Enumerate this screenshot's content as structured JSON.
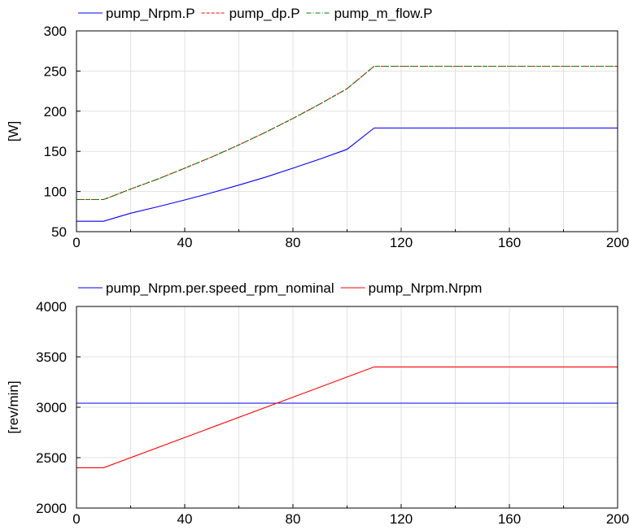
{
  "chart_data": [
    {
      "type": "line",
      "xlim": [
        0,
        200
      ],
      "ylim": [
        50,
        300
      ],
      "xticks": [
        0,
        40,
        80,
        120,
        160,
        200
      ],
      "yticks": [
        50,
        100,
        150,
        200,
        250,
        300
      ],
      "ylabel": "[W]",
      "grid": true,
      "legend_position": "top",
      "series": [
        {
          "name": "pump_Nrpm.P",
          "color": "#0000ff",
          "dash": "solid",
          "x": [
            0,
            10,
            20,
            30,
            40,
            50,
            60,
            70,
            80,
            90,
            100,
            110,
            200
          ],
          "y": [
            63,
            63,
            73,
            81,
            89.5,
            98.5,
            108,
            118,
            129,
            140.5,
            152.5,
            179,
            179
          ]
        },
        {
          "name": "pump_dp.P",
          "color": "#ff0000",
          "dash": "dashed",
          "x": [
            0,
            10,
            20,
            30,
            40,
            50,
            60,
            70,
            80,
            90,
            100,
            110,
            200
          ],
          "y": [
            90,
            90,
            103,
            115.5,
            129,
            143,
            158,
            174,
            191,
            209,
            228,
            256,
            256
          ]
        },
        {
          "name": "pump_m_flow.P",
          "color": "#008000",
          "dash": "dashdot",
          "x": [
            0,
            10,
            20,
            30,
            40,
            50,
            60,
            70,
            80,
            90,
            100,
            110,
            200
          ],
          "y": [
            90,
            90,
            103,
            115.5,
            129,
            143,
            158,
            174,
            191,
            209,
            228,
            256,
            256
          ]
        }
      ]
    },
    {
      "type": "line",
      "xlim": [
        0,
        200
      ],
      "ylim": [
        2000,
        4000
      ],
      "xticks": [
        0,
        40,
        80,
        120,
        160,
        200
      ],
      "yticks": [
        2000,
        2500,
        3000,
        3500,
        4000
      ],
      "ylabel": "[rev/min]",
      "grid": true,
      "legend_position": "top",
      "series": [
        {
          "name": "pump_Nrpm.per.speed_rpm_nominal",
          "color": "#0000ff",
          "dash": "solid",
          "x": [
            0,
            200
          ],
          "y": [
            3040,
            3040
          ]
        },
        {
          "name": "pump_Nrpm.Nrpm",
          "color": "#ff0000",
          "dash": "solid",
          "x": [
            0,
            10,
            110,
            200
          ],
          "y": [
            2400,
            2400,
            3400,
            3400
          ]
        }
      ]
    }
  ]
}
